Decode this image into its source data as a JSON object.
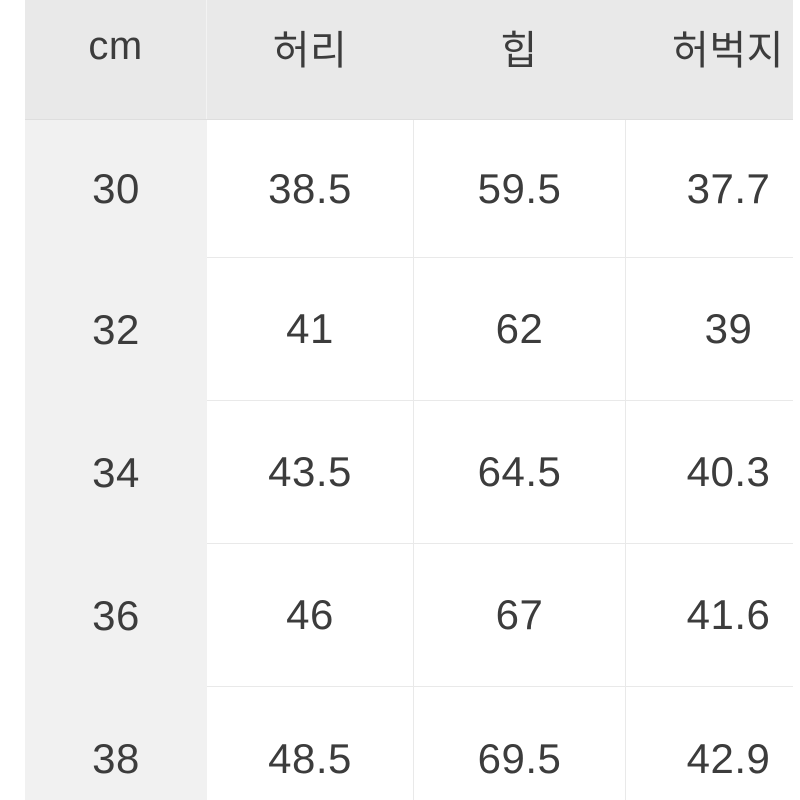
{
  "table": {
    "unit_header": "cm",
    "columns": [
      "허리",
      "힙",
      "허벅지"
    ],
    "rows": [
      {
        "size": "30",
        "values": [
          "38.5",
          "59.5",
          "37.7"
        ]
      },
      {
        "size": "32",
        "values": [
          "41",
          "62",
          "39"
        ]
      },
      {
        "size": "34",
        "values": [
          "43.5",
          "64.5",
          "40.3"
        ]
      },
      {
        "size": "36",
        "values": [
          "46",
          "67",
          "41.6"
        ]
      },
      {
        "size": "38",
        "values": [
          "48.5",
          "69.5",
          "42.9"
        ]
      }
    ],
    "colors": {
      "page_bg": "#ffffff",
      "header_bg": "#e9e9e9",
      "size_col_bg": "#f1f1f1",
      "grid_line": "#e9e9e9",
      "header_line": "#dedede",
      "text": "#3c3c3c"
    }
  }
}
